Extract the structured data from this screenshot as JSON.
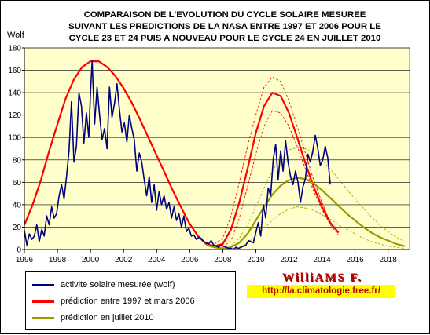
{
  "title_lines": [
    "COMPARAISON DE L'EVOLUTION DU CYCLE SOLAIRE MESUREE",
    "SUIVANT LES PREDICTIONS DE LA NASA ENTRE 1997 ET 2006 POUR LE",
    "CYCLE 23 ET 24 PUIS A NOUVEAU POUR LE CYCLE 24 EN JUILLET 2010"
  ],
  "signature": "WilliAMS F.",
  "website": "http://la.climatologie.free.fr/",
  "colors": {
    "plot_bg": "#ffffcc",
    "measured": "#000080",
    "prediction_1997_2006": "#ff0000",
    "prediction_2006_bounds": "#ff0000",
    "prediction_2010": "#999900",
    "prediction_2010_bounds": "#b3a300",
    "grid": "#000000"
  },
  "chart_data": {
    "type": "line",
    "title": "COMPARAISON DE L'EVOLUTION DU CYCLE SOLAIRE MESUREE SUIVANT LES PREDICTIONS DE LA NASA ENTRE 1997 ET 2006 POUR LE CYCLE 23 ET 24 PUIS A NOUVEAU POUR LE CYCLE 24 EN JUILLET 2010",
    "ylabel": "Wolf",
    "xlim": [
      1996,
      2019.3
    ],
    "ylim": [
      0,
      180
    ],
    "x_ticks": [
      1996,
      1998,
      2000,
      2002,
      2004,
      2006,
      2008,
      2010,
      2012,
      2014,
      2016,
      2018
    ],
    "y_ticks": [
      0,
      20,
      40,
      60,
      80,
      100,
      120,
      140,
      160,
      180
    ],
    "grid": "horizontal",
    "legend_position": "bottom-left",
    "legend": [
      "activite solaire mesurée (wolf)",
      "prédiction entre 1997 et mars 2006",
      "prédiction en juillet 2010"
    ],
    "series": [
      {
        "name": "activite solaire mesurée (wolf)",
        "x": [
          1996.0,
          1996.15,
          1996.3,
          1996.45,
          1996.6,
          1996.75,
          1996.9,
          1997.05,
          1997.2,
          1997.35,
          1997.5,
          1997.65,
          1997.8,
          1997.95,
          1998.1,
          1998.25,
          1998.4,
          1998.55,
          1998.7,
          1998.85,
          1999.0,
          1999.15,
          1999.3,
          1999.45,
          1999.6,
          1999.75,
          1999.9,
          2000.0,
          2000.1,
          2000.25,
          2000.4,
          2000.55,
          2000.7,
          2000.85,
          2001.0,
          2001.15,
          2001.3,
          2001.45,
          2001.6,
          2001.75,
          2001.9,
          2002.05,
          2002.2,
          2002.35,
          2002.5,
          2002.65,
          2002.8,
          2002.95,
          2003.1,
          2003.25,
          2003.4,
          2003.55,
          2003.7,
          2003.85,
          2004.0,
          2004.15,
          2004.3,
          2004.45,
          2004.6,
          2004.75,
          2004.9,
          2005.05,
          2005.2,
          2005.35,
          2005.5,
          2005.65,
          2005.8,
          2005.95,
          2006.1,
          2006.25,
          2006.4,
          2006.55,
          2006.7,
          2006.85,
          2007.0,
          2007.15,
          2007.3,
          2007.45,
          2007.6,
          2007.75,
          2007.9,
          2008.05,
          2008.2,
          2008.35,
          2008.5,
          2008.65,
          2008.8,
          2008.95,
          2009.1,
          2009.25,
          2009.4,
          2009.55,
          2009.7,
          2009.85,
          2010.0,
          2010.15,
          2010.3,
          2010.45,
          2010.6,
          2010.75,
          2010.9,
          2011.05,
          2011.2,
          2011.35,
          2011.5,
          2011.65,
          2011.8,
          2011.95,
          2012.1,
          2012.25,
          2012.4,
          2012.55,
          2012.7,
          2012.85,
          2013.0,
          2013.15,
          2013.3,
          2013.45,
          2013.6,
          2013.75,
          2013.9,
          2014.05,
          2014.2,
          2014.35,
          2014.5
        ],
        "y": [
          17,
          4,
          14,
          9,
          12,
          22,
          7,
          18,
          12,
          30,
          22,
          38,
          28,
          32,
          48,
          58,
          45,
          65,
          88,
          132,
          78,
          92,
          140,
          128,
          95,
          122,
          100,
          140,
          168,
          112,
          145,
          120,
          98,
          108,
          90,
          145,
          118,
          130,
          148,
          125,
          105,
          113,
          96,
          120,
          108,
          98,
          70,
          86,
          78,
          62,
          48,
          65,
          42,
          58,
          35,
          52,
          40,
          48,
          36,
          42,
          28,
          38,
          26,
          32,
          20,
          30,
          16,
          19,
          12,
          13,
          9,
          11,
          10,
          7,
          6,
          5,
          8,
          4,
          3,
          2,
          4,
          3,
          2,
          1,
          1,
          0,
          2,
          1,
          2,
          3,
          4,
          8,
          7,
          6,
          15,
          24,
          12,
          40,
          28,
          55,
          48,
          80,
          94,
          62,
          88,
          70,
          97,
          78,
          65,
          58,
          70,
          60,
          42,
          56,
          63,
          85,
          78,
          88,
          102,
          90,
          75,
          80,
          92,
          82,
          58
        ]
      },
      {
        "name": "prédiction entre 1997 et mars 2006",
        "x": [
          1996.0,
          1996.5,
          1997.0,
          1997.5,
          1998.0,
          1998.5,
          1999.0,
          1999.5,
          2000.0,
          2000.5,
          2001.0,
          2001.5,
          2002.0,
          2002.5,
          2003.0,
          2003.5,
          2004.0,
          2004.5,
          2005.0,
          2005.5,
          2006.0,
          2006.5,
          2007.0,
          2007.5,
          2008.0,
          2008.5,
          2009.0,
          2009.5,
          2010.0,
          2010.5,
          2011.0,
          2011.5,
          2012.0,
          2012.5,
          2013.0,
          2013.5,
          2014.0,
          2014.5,
          2015.0
        ],
        "y": [
          22,
          40,
          62,
          88,
          112,
          135,
          152,
          163,
          168,
          168,
          163,
          155,
          144,
          131,
          116,
          100,
          84,
          68,
          52,
          37,
          23,
          12,
          5,
          3,
          5,
          18,
          42,
          72,
          104,
          128,
          140,
          137,
          122,
          100,
          77,
          56,
          38,
          24,
          15
        ]
      },
      {
        "name": "prédiction en juillet 2010",
        "x": [
          2007.0,
          2007.5,
          2008.0,
          2008.5,
          2009.0,
          2009.5,
          2010.0,
          2010.5,
          2011.0,
          2011.5,
          2012.0,
          2012.5,
          2013.0,
          2013.5,
          2014.0,
          2014.5,
          2015.0,
          2015.5,
          2016.0,
          2016.5,
          2017.0,
          2017.5,
          2018.0,
          2018.5,
          2019.0
        ],
        "y": [
          4,
          2,
          1,
          2,
          6,
          14,
          26,
          38,
          49,
          57,
          62,
          64,
          63,
          59,
          53,
          46,
          39,
          32,
          26,
          20,
          15,
          11,
          8,
          5,
          3
        ]
      }
    ],
    "bounds": [
      {
        "style": "dashed",
        "color_key": "prediction_2006_bounds",
        "x": [
          2007.5,
          2008.0,
          2008.5,
          2009.0,
          2009.5,
          2010.0,
          2010.5,
          2011.0,
          2011.5,
          2012.0,
          2012.5,
          2013.0,
          2013.5,
          2014.0,
          2014.5
        ],
        "y": [
          5,
          10,
          30,
          60,
          92,
          120,
          145,
          154,
          150,
          133,
          110,
          86,
          62,
          42,
          24
        ]
      },
      {
        "style": "dashed",
        "color_key": "prediction_2006_bounds",
        "x": [
          2008.0,
          2008.5,
          2009.0,
          2009.5,
          2010.0,
          2010.5,
          2011.0,
          2011.5,
          2012.0,
          2012.5,
          2013.0,
          2013.5,
          2014.0,
          2014.5,
          2015.0
        ],
        "y": [
          2,
          8,
          28,
          56,
          85,
          110,
          124,
          122,
          110,
          92,
          72,
          52,
          36,
          22,
          13
        ]
      },
      {
        "style": "dashed",
        "color_key": "prediction_2010_bounds",
        "x": [
          2008.5,
          2009.0,
          2009.5,
          2010.0,
          2010.5,
          2011.0,
          2011.5,
          2012.0,
          2012.5,
          2013.0,
          2013.5,
          2014.0,
          2014.5,
          2015.0,
          2015.5,
          2016.0,
          2016.5,
          2017.0,
          2017.5,
          2018.0,
          2018.5,
          2019.0
        ],
        "y": [
          3,
          10,
          22,
          38,
          55,
          70,
          82,
          89,
          91,
          90,
          86,
          80,
          72,
          63,
          54,
          45,
          37,
          29,
          22,
          16,
          11,
          7
        ]
      },
      {
        "style": "dashed",
        "color_key": "prediction_2010_bounds",
        "x": [
          2009.0,
          2009.5,
          2010.0,
          2010.5,
          2011.0,
          2011.5,
          2012.0,
          2012.5,
          2013.0,
          2013.5,
          2014.0,
          2014.5,
          2015.0,
          2015.5,
          2016.0,
          2016.5,
          2017.0,
          2017.5,
          2018.0,
          2018.5,
          2019.0
        ],
        "y": [
          2,
          6,
          12,
          19,
          26,
          32,
          36,
          38,
          37,
          35,
          31,
          27,
          22,
          18,
          14,
          10,
          7,
          5,
          3,
          2,
          1
        ]
      }
    ]
  }
}
